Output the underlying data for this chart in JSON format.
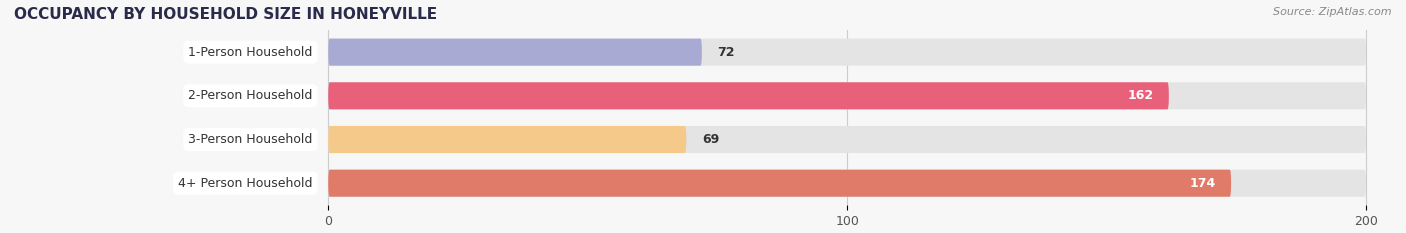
{
  "title": "OCCUPANCY BY HOUSEHOLD SIZE IN HONEYVILLE",
  "source": "Source: ZipAtlas.com",
  "categories": [
    "1-Person Household",
    "2-Person Household",
    "3-Person Household",
    "4+ Person Household"
  ],
  "values": [
    72,
    162,
    69,
    174
  ],
  "bar_colors": [
    "#a8aad4",
    "#e8607a",
    "#f5c98a",
    "#e07b6a"
  ],
  "bar_bg_color": "#e4e4e4",
  "label_pill_color": "#ffffff",
  "background_color": "#f7f7f7",
  "xlim_data": [
    0,
    200
  ],
  "x_max_display": 200,
  "xticks": [
    0,
    100,
    200
  ],
  "bar_height": 0.62,
  "value_label_fontsize": 9,
  "category_fontsize": 9,
  "title_fontsize": 11,
  "grid_color": "#cccccc",
  "text_color": "#333333",
  "source_color": "#888888"
}
